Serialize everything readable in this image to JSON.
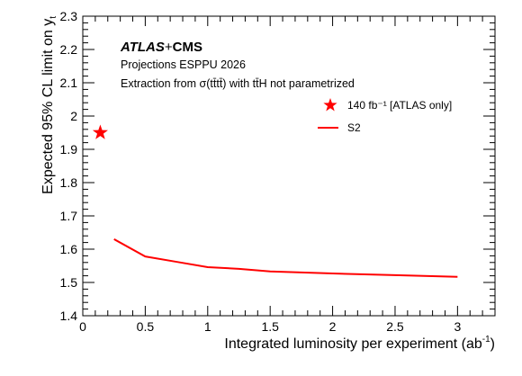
{
  "chart_data": {
    "type": "line",
    "xlabel": "Integrated luminosity per experiment (ab",
    "xlabel_sup": "-1",
    "xlabel_tail": ")",
    "ylabel": "Expected 95% CL limit on y",
    "ylabel_sub": "t",
    "xlim": [
      0,
      3.3
    ],
    "ylim": [
      1.4,
      2.3
    ],
    "x_ticks": [
      0,
      0.5,
      1,
      1.5,
      2,
      2.5,
      3
    ],
    "x_tick_labels": [
      "0",
      "0.5",
      "1",
      "1.5",
      "2",
      "2.5",
      "3"
    ],
    "y_ticks": [
      1.4,
      1.5,
      1.6,
      1.7,
      1.8,
      1.9,
      2.0,
      2.1,
      2.2,
      2.3
    ],
    "y_tick_labels": [
      "1.4",
      "1.5",
      "1.6",
      "1.7",
      "1.8",
      "1.9",
      "2",
      "2.1",
      "2.2",
      "2.3"
    ],
    "grid": false,
    "legend_position": "top-right",
    "annotations": {
      "atlas": "ATLAS",
      "plus": "+",
      "cms": "CMS",
      "line1": "Projections ESPPU 2026",
      "line2": "Extraction from σ(tt̄tt̄) with tt̄H not parametrized"
    },
    "series": [
      {
        "name": "140 fb⁻¹ [ATLAS only]",
        "type": "scatter",
        "marker": "star",
        "color": "#ff0000",
        "x": [
          0.14
        ],
        "y": [
          1.95
        ]
      },
      {
        "name": "S2",
        "type": "line",
        "color": "#ff0000",
        "x": [
          0.25,
          0.5,
          0.75,
          1.0,
          1.25,
          1.5,
          2.0,
          2.5,
          3.0
        ],
        "y": [
          1.63,
          1.578,
          1.562,
          1.546,
          1.541,
          1.533,
          1.527,
          1.522,
          1.517
        ]
      }
    ]
  }
}
